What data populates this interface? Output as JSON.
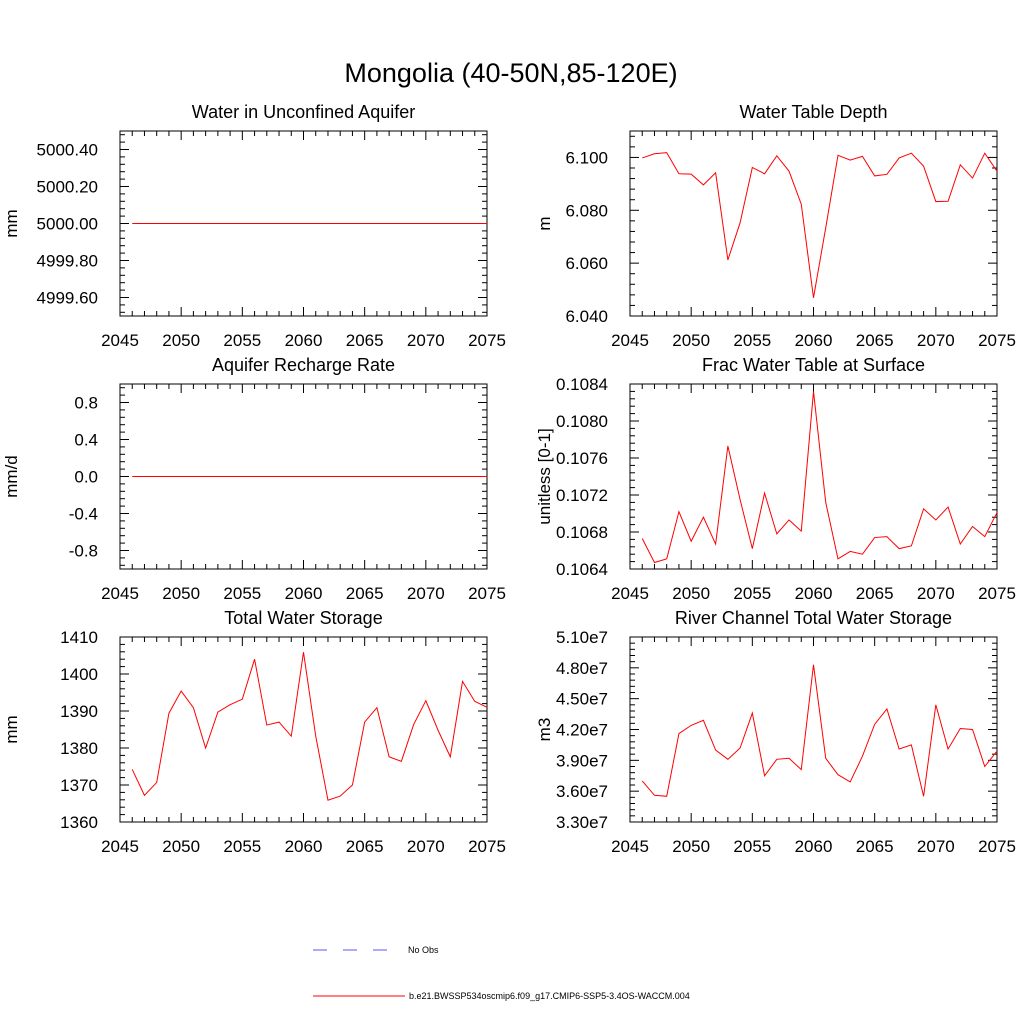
{
  "figure": {
    "title": "Mongolia (40-50N,85-120E)",
    "colors": {
      "series": "#ff0000",
      "obs": "#5555ff",
      "axis": "#000000"
    }
  },
  "legend": {
    "items": [
      {
        "label": "No Obs",
        "color": "#5555ff",
        "style": "dashed"
      },
      {
        "label": "b.e21.BWSSP534oscmip6.f09_g17.CMIP6-SSP5-3.4OS-WACCM.004",
        "color": "#ff0000",
        "style": "solid"
      }
    ]
  },
  "chart_data": [
    {
      "type": "line",
      "title": "Water in Unconfined Aquifer",
      "xlabel": "",
      "ylabel": "mm",
      "xlim": [
        2045,
        2075
      ],
      "ylim": [
        4999.5,
        5000.5
      ],
      "xticks": [
        2045,
        2050,
        2055,
        2060,
        2065,
        2070,
        2075
      ],
      "xtick_labels": [
        "2045",
        "2050",
        "2055",
        "2060",
        "2065",
        "2070",
        "2075"
      ],
      "yticks": [
        4999.6,
        4999.8,
        5000.0,
        5000.2,
        5000.4
      ],
      "ytick_labels": [
        "4999.60",
        "4999.80",
        "5000.00",
        "5000.20",
        "5000.40"
      ],
      "series": [
        {
          "x": [
            2046,
            2047,
            2048,
            2049,
            2050,
            2051,
            2052,
            2053,
            2054,
            2055,
            2056,
            2057,
            2058,
            2059,
            2060,
            2061,
            2062,
            2063,
            2064,
            2065,
            2066,
            2067,
            2068,
            2069,
            2070,
            2071,
            2072,
            2073,
            2074,
            2075
          ],
          "values": [
            5000.0,
            5000.0,
            5000.0,
            5000.0,
            5000.0,
            5000.0,
            5000.0,
            5000.0,
            5000.0,
            5000.0,
            5000.0,
            5000.0,
            5000.0,
            5000.0,
            5000.0,
            5000.0,
            5000.0,
            5000.0,
            5000.0,
            5000.0,
            5000.0,
            5000.0,
            5000.0,
            5000.0,
            5000.0,
            5000.0,
            5000.0,
            5000.0,
            5000.0,
            5000.0
          ]
        }
      ]
    },
    {
      "type": "line",
      "title": "Water Table Depth",
      "xlabel": "",
      "ylabel": "m",
      "xlim": [
        2045,
        2075
      ],
      "ylim": [
        6.04,
        6.11
      ],
      "xticks": [
        2045,
        2050,
        2055,
        2060,
        2065,
        2070,
        2075
      ],
      "xtick_labels": [
        "2045",
        "2050",
        "2055",
        "2060",
        "2065",
        "2070",
        "2075"
      ],
      "yticks": [
        6.04,
        6.06,
        6.08,
        6.1
      ],
      "ytick_labels": [
        "6.040",
        "6.060",
        "6.080",
        "6.100"
      ],
      "series": [
        {
          "x": [
            2046,
            2047,
            2048,
            2049,
            2050,
            2051,
            2052,
            2053,
            2054,
            2055,
            2056,
            2057,
            2058,
            2059,
            2060,
            2061,
            2062,
            2063,
            2064,
            2065,
            2066,
            2067,
            2068,
            2069,
            2070,
            2071,
            2072,
            2073,
            2074,
            2075
          ],
          "values": [
            6.0998,
            6.1014,
            6.1018,
            6.0938,
            6.0937,
            6.0896,
            6.0942,
            6.0612,
            6.0753,
            6.0962,
            6.0938,
            6.1006,
            6.0948,
            6.0823,
            6.0469,
            6.0734,
            6.1008,
            6.099,
            6.1004,
            6.093,
            6.0936,
            6.0998,
            6.1016,
            6.0967,
            6.0833,
            6.0834,
            6.0972,
            6.0922,
            6.1016,
            6.0948
          ]
        }
      ]
    },
    {
      "type": "line",
      "title": "Aquifer Recharge Rate",
      "xlabel": "",
      "ylabel": "mm/d",
      "xlim": [
        2045,
        2075
      ],
      "ylim": [
        -1.0,
        1.0
      ],
      "xticks": [
        2045,
        2050,
        2055,
        2060,
        2065,
        2070,
        2075
      ],
      "xtick_labels": [
        "2045",
        "2050",
        "2055",
        "2060",
        "2065",
        "2070",
        "2075"
      ],
      "yticks": [
        -0.8,
        -0.4,
        0.0,
        0.4,
        0.8
      ],
      "ytick_labels": [
        "-0.8",
        "-0.4",
        "0.0",
        "0.4",
        "0.8"
      ],
      "series": [
        {
          "x": [
            2046,
            2047,
            2048,
            2049,
            2050,
            2051,
            2052,
            2053,
            2054,
            2055,
            2056,
            2057,
            2058,
            2059,
            2060,
            2061,
            2062,
            2063,
            2064,
            2065,
            2066,
            2067,
            2068,
            2069,
            2070,
            2071,
            2072,
            2073,
            2074,
            2075
          ],
          "values": [
            0.0,
            0.0,
            0.0,
            0.0,
            0.0,
            0.0,
            0.0,
            0.0,
            0.0,
            0.0,
            0.0,
            0.0,
            0.0,
            0.0,
            0.0,
            0.0,
            0.0,
            0.0,
            0.0,
            0.0,
            0.0,
            0.0,
            0.0,
            0.0,
            0.0,
            0.0,
            0.0,
            0.0,
            0.0,
            0.0
          ]
        }
      ]
    },
    {
      "type": "line",
      "title": "Frac Water Table at Surface",
      "xlabel": "",
      "ylabel": "unitless [0-1]",
      "xlim": [
        2045,
        2075
      ],
      "ylim": [
        0.1064,
        0.1084
      ],
      "xticks": [
        2045,
        2050,
        2055,
        2060,
        2065,
        2070,
        2075
      ],
      "xtick_labels": [
        "2045",
        "2050",
        "2055",
        "2060",
        "2065",
        "2070",
        "2075"
      ],
      "yticks": [
        0.1064,
        0.1068,
        0.1072,
        0.1076,
        0.108,
        0.1084
      ],
      "ytick_labels": [
        "0.1064",
        "0.1068",
        "0.1072",
        "0.1076",
        "0.1080",
        "0.1084"
      ],
      "series": [
        {
          "x": [
            2046,
            2047,
            2048,
            2049,
            2050,
            2051,
            2052,
            2053,
            2054,
            2055,
            2056,
            2057,
            2058,
            2059,
            2060,
            2061,
            2062,
            2063,
            2064,
            2065,
            2066,
            2067,
            2068,
            2069,
            2070,
            2071,
            2072,
            2073,
            2074,
            2075
          ],
          "values": [
            0.10673,
            0.10647,
            0.10651,
            0.10702,
            0.1067,
            0.10696,
            0.10667,
            0.10773,
            0.10715,
            0.10662,
            0.10722,
            0.10678,
            0.10693,
            0.10681,
            0.10832,
            0.10712,
            0.10651,
            0.10659,
            0.10656,
            0.10674,
            0.10675,
            0.10662,
            0.10665,
            0.10705,
            0.10693,
            0.10707,
            0.10667,
            0.10686,
            0.10675,
            0.10701
          ]
        }
      ]
    },
    {
      "type": "line",
      "title": "Total Water Storage",
      "xlabel": "",
      "ylabel": "mm",
      "xlim": [
        2045,
        2075
      ],
      "ylim": [
        1360,
        1410
      ],
      "xticks": [
        2045,
        2050,
        2055,
        2060,
        2065,
        2070,
        2075
      ],
      "xtick_labels": [
        "2045",
        "2050",
        "2055",
        "2060",
        "2065",
        "2070",
        "2075"
      ],
      "yticks": [
        1360,
        1370,
        1380,
        1390,
        1400,
        1410
      ],
      "ytick_labels": [
        "1360",
        "1370",
        "1380",
        "1390",
        "1400",
        "1410"
      ],
      "series": [
        {
          "x": [
            2046,
            2047,
            2048,
            2049,
            2050,
            2051,
            2052,
            2053,
            2054,
            2055,
            2056,
            2057,
            2058,
            2059,
            2060,
            2061,
            2062,
            2063,
            2064,
            2065,
            2066,
            2067,
            2068,
            2069,
            2070,
            2071,
            2072,
            2073,
            2074,
            2075
          ],
          "values": [
            1374.2,
            1367.2,
            1370.7,
            1389.4,
            1395.4,
            1390.9,
            1380.0,
            1389.7,
            1391.7,
            1393.2,
            1404.0,
            1386.2,
            1387.0,
            1383.2,
            1405.9,
            1383.2,
            1365.9,
            1367.0,
            1370.0,
            1387.0,
            1390.9,
            1377.6,
            1376.4,
            1386.3,
            1392.8,
            1384.8,
            1377.6,
            1398.0,
            1392.6,
            1391.0
          ]
        }
      ]
    },
    {
      "type": "line",
      "title": "River Channel Total Water Storage",
      "xlabel": "",
      "ylabel": "m3",
      "xlim": [
        2045,
        2075
      ],
      "ylim": [
        33000000,
        51000000
      ],
      "xticks": [
        2045,
        2050,
        2055,
        2060,
        2065,
        2070,
        2075
      ],
      "xtick_labels": [
        "2045",
        "2050",
        "2055",
        "2060",
        "2065",
        "2070",
        "2075"
      ],
      "yticks": [
        33000000,
        36000000,
        39000000,
        42000000,
        45000000,
        48000000,
        51000000
      ],
      "ytick_labels": [
        "3.30e7",
        "3.60e7",
        "3.90e7",
        "4.20e7",
        "4.50e7",
        "4.80e7",
        "5.10e7"
      ],
      "series": [
        {
          "x": [
            2046,
            2047,
            2048,
            2049,
            2050,
            2051,
            2052,
            2053,
            2054,
            2055,
            2056,
            2057,
            2058,
            2059,
            2060,
            2061,
            2062,
            2063,
            2064,
            2065,
            2066,
            2067,
            2068,
            2069,
            2070,
            2071,
            2072,
            2073,
            2074,
            2075
          ],
          "values": [
            37000000,
            35600000,
            35500000,
            41600000,
            42400000,
            42900000,
            40000000,
            39100000,
            40200000,
            43600000,
            37500000,
            39100000,
            39200000,
            38100000,
            48300000,
            39200000,
            37600000,
            36900000,
            39400000,
            42500000,
            44000000,
            40100000,
            40500000,
            35500000,
            44400000,
            40100000,
            42100000,
            42000000,
            38400000,
            39900000
          ]
        }
      ]
    }
  ]
}
